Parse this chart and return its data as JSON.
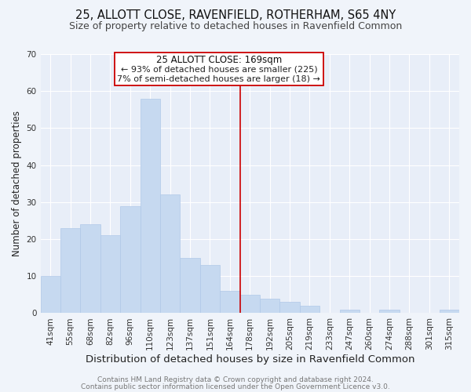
{
  "title1": "25, ALLOTT CLOSE, RAVENFIELD, ROTHERHAM, S65 4NY",
  "title2": "Size of property relative to detached houses in Ravenfield Common",
  "xlabel": "Distribution of detached houses by size in Ravenfield Common",
  "ylabel": "Number of detached properties",
  "categories": [
    "41sqm",
    "55sqm",
    "68sqm",
    "82sqm",
    "96sqm",
    "110sqm",
    "123sqm",
    "137sqm",
    "151sqm",
    "164sqm",
    "178sqm",
    "192sqm",
    "205sqm",
    "219sqm",
    "233sqm",
    "247sqm",
    "260sqm",
    "274sqm",
    "288sqm",
    "301sqm",
    "315sqm"
  ],
  "values": [
    10,
    23,
    24,
    21,
    29,
    58,
    32,
    15,
    13,
    6,
    5,
    4,
    3,
    2,
    0,
    1,
    0,
    1,
    0,
    0,
    1
  ],
  "bar_color": "#c6d9f0",
  "bar_edge_color": "#b0c8e8",
  "vline_color": "#cc0000",
  "vline_pos": 9.5,
  "ylim": [
    0,
    70
  ],
  "yticks": [
    0,
    10,
    20,
    30,
    40,
    50,
    60,
    70
  ],
  "annotation_title": "25 ALLOTT CLOSE: 169sqm",
  "annotation_line1": "← 93% of detached houses are smaller (225)",
  "annotation_line2": "7% of semi-detached houses are larger (18) →",
  "footer1": "Contains HM Land Registry data © Crown copyright and database right 2024.",
  "footer2": "Contains public sector information licensed under the Open Government Licence v3.0.",
  "background_color": "#f0f4fa",
  "plot_bg_color": "#e8eef8",
  "grid_color": "#ffffff",
  "box_color": "#cc0000",
  "title_fontsize": 10.5,
  "subtitle_fontsize": 9,
  "xlabel_fontsize": 9.5,
  "ylabel_fontsize": 8.5,
  "tick_fontsize": 7.5,
  "annotation_title_fontsize": 8.5,
  "annotation_line_fontsize": 8,
  "footer_fontsize": 6.5
}
